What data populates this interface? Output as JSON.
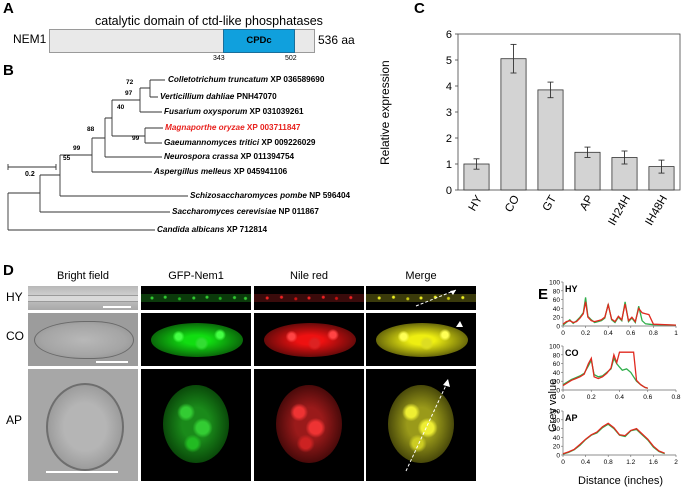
{
  "panel_letters": {
    "a": "A",
    "b": "B",
    "c": "C",
    "d": "D",
    "e": "E"
  },
  "panelA": {
    "title": "catalytic domain of ctd-like phosphatases",
    "protein": "NEM1",
    "domain": "CPDc",
    "start": "343",
    "end": "502",
    "length": "536 aa"
  },
  "panelB": {
    "taxa": [
      {
        "name": "Colletotrichum truncatum",
        "acc": "XP 036589690",
        "highlight": false
      },
      {
        "name": "Verticillium dahliae",
        "acc": "PNH47070",
        "highlight": false
      },
      {
        "name": "Fusarium oxysporum",
        "acc": "XP 031039261",
        "highlight": false
      },
      {
        "name": "Magnaporthe oryzae",
        "acc": "XP 003711847",
        "highlight": true
      },
      {
        "name": "Gaeumannomyces tritici",
        "acc": "XP 009226029",
        "highlight": false
      },
      {
        "name": "Neurospora crassa",
        "acc": "XP 011394754",
        "highlight": false
      },
      {
        "name": "Aspergillus melleus",
        "acc": "XP 045941106",
        "highlight": false
      },
      {
        "name": "Schizosaccharomyces pombe",
        "acc": "NP 596404",
        "highlight": false
      },
      {
        "name": "Saccharomyces cerevisiae",
        "acc": "NP 011867",
        "highlight": false
      },
      {
        "name": "Candida albicans",
        "acc": "XP 712814",
        "highlight": false
      }
    ],
    "bootstraps": [
      "72",
      "97",
      "40",
      "88",
      "99",
      "99",
      "55"
    ],
    "scale": "0.2",
    "highlight_color": "#e8231f"
  },
  "chart_data": [
    {
      "type": "bar",
      "panel": "C",
      "categories": [
        "HY",
        "CO",
        "GT",
        "AP",
        "IH24H",
        "IH48H"
      ],
      "values": [
        1.0,
        5.05,
        3.85,
        1.45,
        1.25,
        0.9
      ],
      "errors": [
        0.2,
        0.55,
        0.3,
        0.2,
        0.25,
        0.25
      ],
      "ylabel": "Relative expression",
      "ylim": [
        0,
        6
      ],
      "yticks": [
        "0",
        "1",
        "2",
        "3",
        "4",
        "5",
        "6"
      ],
      "bar_color": "#d3d3d3"
    },
    {
      "type": "line",
      "panel": "E",
      "title": "HY",
      "ylabel": "Grey value",
      "xlabel": "Distance (inches)",
      "xlim": [
        0,
        1
      ],
      "ylim": [
        0,
        100
      ],
      "xticks": [
        "0",
        "0.2",
        "0.4",
        "0.6",
        "0.8",
        "1"
      ],
      "yticks": [
        "0",
        "20",
        "40",
        "60",
        "80",
        "100"
      ],
      "series": [
        {
          "name": "green",
          "color": "#2fae4a",
          "x": [
            0,
            0.03,
            0.06,
            0.09,
            0.12,
            0.15,
            0.18,
            0.2,
            0.22,
            0.25,
            0.28,
            0.31,
            0.34,
            0.37,
            0.4,
            0.43,
            0.46,
            0.49,
            0.52,
            0.55,
            0.58,
            0.61,
            0.64,
            0.67,
            0.7,
            0.73,
            0.76,
            0.8,
            1.0
          ],
          "y": [
            2,
            8,
            14,
            6,
            12,
            20,
            30,
            65,
            22,
            14,
            8,
            10,
            12,
            18,
            50,
            14,
            8,
            20,
            12,
            55,
            10,
            18,
            8,
            45,
            12,
            5,
            4,
            3,
            2
          ]
        },
        {
          "name": "red",
          "color": "#e0291f",
          "x": [
            0,
            0.03,
            0.06,
            0.09,
            0.12,
            0.15,
            0.18,
            0.2,
            0.22,
            0.25,
            0.28,
            0.31,
            0.34,
            0.37,
            0.4,
            0.43,
            0.46,
            0.49,
            0.52,
            0.55,
            0.58,
            0.61,
            0.64,
            0.67,
            0.7,
            0.73,
            0.76,
            0.8,
            1.0
          ],
          "y": [
            4,
            10,
            12,
            8,
            10,
            18,
            28,
            55,
            20,
            12,
            10,
            12,
            14,
            20,
            48,
            16,
            10,
            22,
            14,
            50,
            12,
            20,
            10,
            40,
            30,
            28,
            26,
            4,
            2
          ]
        }
      ]
    },
    {
      "type": "line",
      "panel": "E",
      "title": "CO",
      "xlim": [
        0,
        0.8
      ],
      "ylim": [
        0,
        100
      ],
      "xticks": [
        "0",
        "0.2",
        "0.4",
        "0.6",
        "0.8"
      ],
      "yticks": [
        "0",
        "20",
        "40",
        "60",
        "80",
        "100"
      ],
      "series": [
        {
          "name": "green",
          "color": "#2fae4a",
          "x": [
            0,
            0.03,
            0.06,
            0.09,
            0.12,
            0.15,
            0.18,
            0.2,
            0.22,
            0.25,
            0.28,
            0.31,
            0.34,
            0.36,
            0.38,
            0.4,
            0.42,
            0.45,
            0.48,
            0.5,
            0.52,
            0.55,
            0.58,
            0.6
          ],
          "y": [
            12,
            18,
            24,
            28,
            32,
            38,
            55,
            68,
            35,
            30,
            32,
            40,
            48,
            72,
            60,
            52,
            45,
            48,
            40,
            30,
            20,
            12,
            6,
            4
          ]
        },
        {
          "name": "red",
          "color": "#e0291f",
          "x": [
            0,
            0.03,
            0.06,
            0.09,
            0.12,
            0.15,
            0.18,
            0.2,
            0.22,
            0.25,
            0.28,
            0.31,
            0.34,
            0.36,
            0.38,
            0.4,
            0.42,
            0.45,
            0.48,
            0.5,
            0.52,
            0.55,
            0.58,
            0.6
          ],
          "y": [
            10,
            16,
            22,
            26,
            30,
            36,
            60,
            72,
            30,
            26,
            30,
            38,
            50,
            80,
            62,
            86,
            86,
            86,
            86,
            86,
            22,
            12,
            6,
            4
          ]
        }
      ]
    },
    {
      "type": "line",
      "panel": "E",
      "title": "AP",
      "xlim": [
        0,
        2
      ],
      "ylim": [
        0,
        100
      ],
      "xticks": [
        "0",
        "0.4",
        "0.8",
        "1.2",
        "1.6",
        "2"
      ],
      "yticks": [
        "0",
        "20",
        "40",
        "60",
        "80",
        "100"
      ],
      "series": [
        {
          "name": "green",
          "color": "#2fae4a",
          "x": [
            0,
            0.1,
            0.2,
            0.3,
            0.4,
            0.5,
            0.6,
            0.7,
            0.8,
            0.9,
            1.0,
            1.1,
            1.2,
            1.3,
            1.4,
            1.5,
            1.6,
            1.7,
            1.8
          ],
          "y": [
            2,
            6,
            12,
            22,
            35,
            45,
            50,
            62,
            70,
            60,
            45,
            42,
            55,
            58,
            46,
            34,
            18,
            8,
            3
          ]
        },
        {
          "name": "red",
          "color": "#e0291f",
          "x": [
            0,
            0.1,
            0.2,
            0.3,
            0.4,
            0.5,
            0.6,
            0.7,
            0.8,
            0.9,
            1.0,
            1.1,
            1.2,
            1.3,
            1.4,
            1.5,
            1.6,
            1.7,
            1.8
          ],
          "y": [
            3,
            7,
            13,
            24,
            36,
            46,
            52,
            64,
            72,
            62,
            46,
            44,
            56,
            60,
            48,
            36,
            20,
            9,
            4
          ]
        }
      ]
    }
  ],
  "panelD": {
    "columns": [
      "Bright field",
      "GFP-Nem1",
      "Nile red",
      "Merge"
    ],
    "rows": [
      "HY",
      "CO",
      "AP"
    ]
  }
}
